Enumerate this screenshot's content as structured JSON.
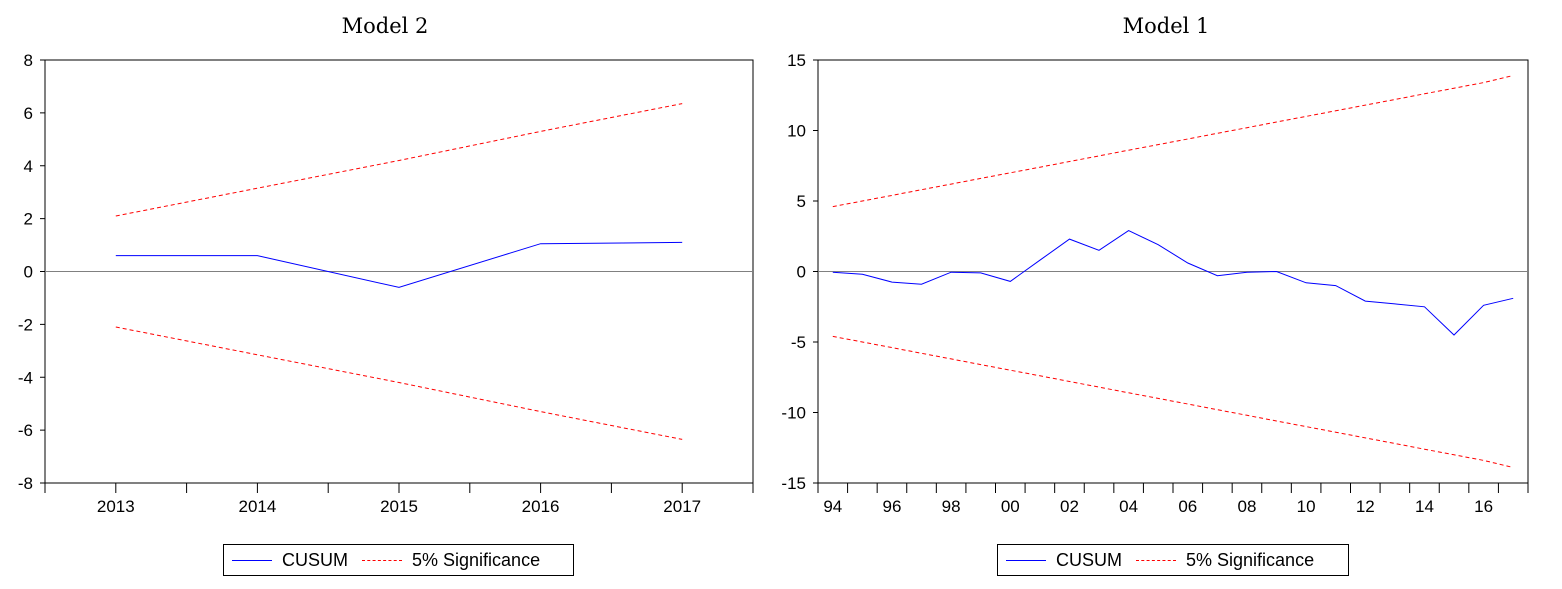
{
  "chart_data": [
    {
      "type": "line",
      "title": "Model 2",
      "xlabel": "",
      "ylabel": "",
      "ylim": [
        -8,
        8
      ],
      "yticks": [
        "8",
        "6",
        "4",
        "2",
        "0",
        "-2",
        "-4",
        "-6",
        "-8"
      ],
      "x_tick_labels": [
        "2013",
        "2014",
        "2015",
        "2016",
        "2017"
      ],
      "x": [
        2013,
        2014,
        2015,
        2016,
        2017
      ],
      "xlim": [
        2012.5,
        2017.5
      ],
      "zero_line": true,
      "grid": false,
      "legend_position": "bottom-center",
      "series": [
        {
          "name": "CUSUM",
          "color": "#0000ff",
          "style": "solid",
          "values": [
            0.6,
            0.6,
            -0.6,
            1.05,
            1.1
          ]
        },
        {
          "name": "5% Significance",
          "color": "#ff0000",
          "style": "dashed",
          "values": [
            2.1,
            3.15,
            4.2,
            5.3,
            6.35
          ]
        },
        {
          "name": "5% Significance",
          "color": "#ff0000",
          "style": "dashed",
          "values": [
            -2.1,
            -3.15,
            -4.2,
            -5.3,
            -6.35
          ]
        }
      ],
      "legend": [
        "CUSUM",
        "5% Significance"
      ]
    },
    {
      "type": "line",
      "title": "Model 1",
      "xlabel": "",
      "ylabel": "",
      "ylim": [
        -15,
        15
      ],
      "yticks": [
        "15",
        "10",
        "5",
        "0",
        "-5",
        "-10",
        "-15"
      ],
      "x_tick_labels": [
        "94",
        "96",
        "98",
        "00",
        "02",
        "04",
        "06",
        "08",
        "10",
        "12",
        "14",
        "16"
      ],
      "x_tick_years": [
        1994,
        1996,
        1998,
        2000,
        2002,
        2004,
        2006,
        2008,
        2010,
        2012,
        2014,
        2016
      ],
      "x": [
        1994,
        1995,
        1996,
        1997,
        1998,
        1999,
        2000,
        2001,
        2002,
        2003,
        2004,
        2005,
        2006,
        2007,
        2008,
        2009,
        2010,
        2011,
        2012,
        2013,
        2014,
        2015,
        2016,
        2017
      ],
      "xlim": [
        1993.5,
        2017.5
      ],
      "zero_line": true,
      "grid": false,
      "legend_position": "bottom-center",
      "series": [
        {
          "name": "CUSUM",
          "color": "#0000ff",
          "style": "solid",
          "values": [
            -0.05,
            -0.2,
            -0.75,
            -0.9,
            -0.05,
            -0.1,
            -0.7,
            0.8,
            2.3,
            1.5,
            2.9,
            1.9,
            0.6,
            -0.3,
            -0.05,
            0.0,
            -0.8,
            -1.0,
            -2.1,
            -2.3,
            -2.5,
            -4.5,
            -2.4,
            -1.9
          ]
        },
        {
          "name": "5% Significance",
          "color": "#ff0000",
          "style": "dashed",
          "values": [
            4.6,
            5.0,
            5.4,
            5.8,
            6.2,
            6.6,
            7.0,
            7.4,
            7.8,
            8.2,
            8.6,
            9.0,
            9.4,
            9.8,
            10.2,
            10.6,
            11.0,
            11.4,
            11.8,
            12.2,
            12.6,
            13.0,
            13.4,
            13.9
          ]
        },
        {
          "name": "5% Significance",
          "color": "#ff0000",
          "style": "dashed",
          "values": [
            -4.6,
            -5.0,
            -5.4,
            -5.8,
            -6.2,
            -6.6,
            -7.0,
            -7.4,
            -7.8,
            -8.2,
            -8.6,
            -9.0,
            -9.4,
            -9.8,
            -10.2,
            -10.6,
            -11.0,
            -11.4,
            -11.8,
            -12.2,
            -12.6,
            -13.0,
            -13.4,
            -13.9
          ]
        }
      ],
      "legend": [
        "CUSUM",
        "5% Significance"
      ]
    }
  ]
}
